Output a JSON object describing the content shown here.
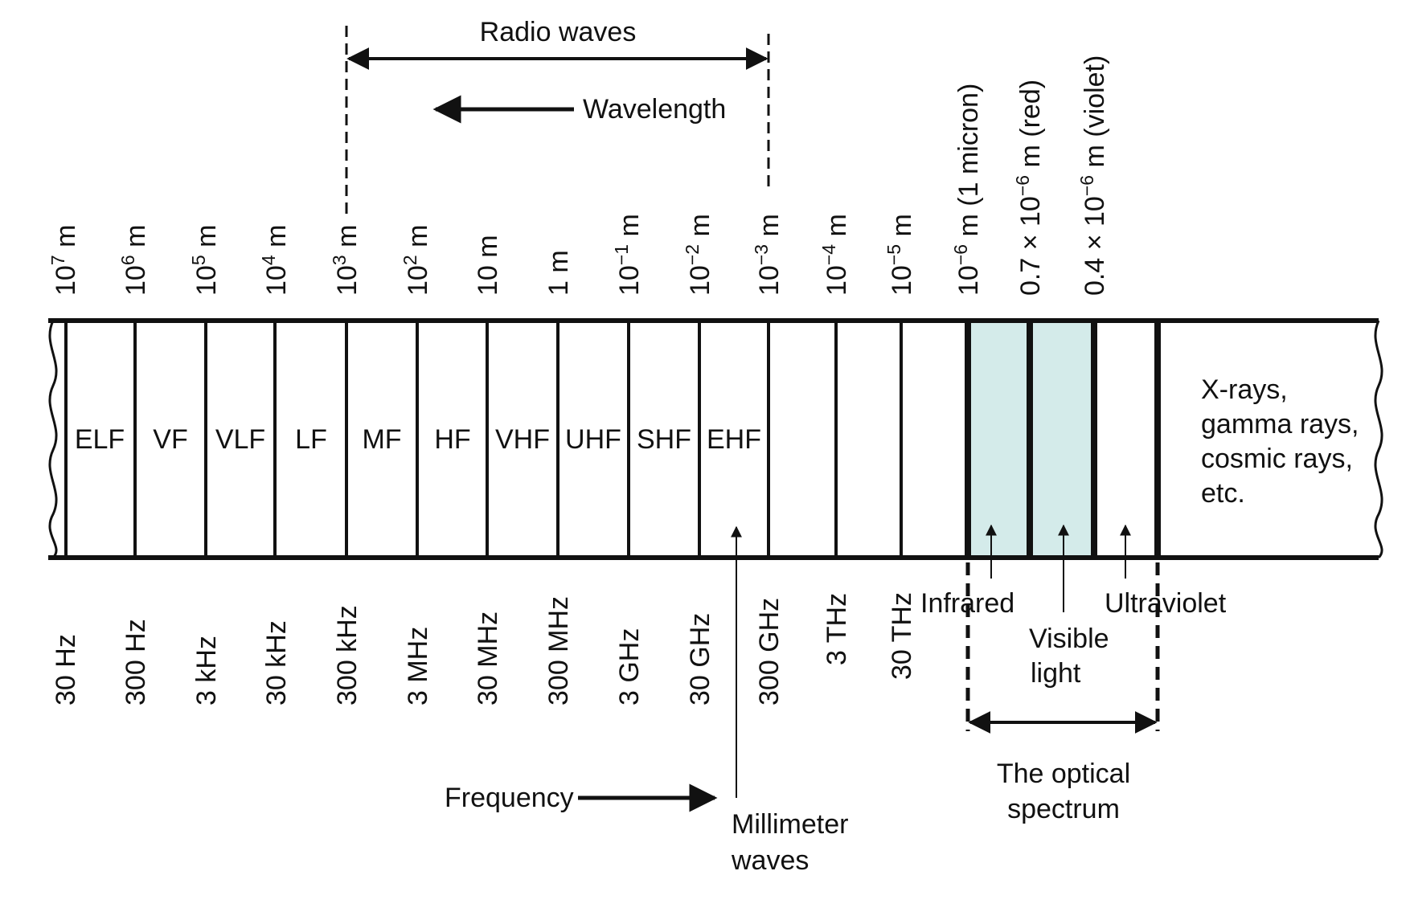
{
  "colors": {
    "line": "#111111",
    "optical_fill": "#d4ebea",
    "background": "#ffffff"
  },
  "annotations": {
    "radio_waves": "Radio waves",
    "wavelength": "Wavelength",
    "frequency": "Frequency",
    "millimeter_waves": [
      "Millimeter",
      "waves"
    ],
    "infrared": "Infrared",
    "visible_light": [
      "Visible",
      "light"
    ],
    "ultraviolet": "Ultraviolet",
    "optical_spectrum": [
      "The optical",
      "spectrum"
    ],
    "high_energy": [
      "X-rays,",
      "gamma rays,",
      "cosmic rays,",
      "etc."
    ]
  },
  "bands": [
    "ELF",
    "VF",
    "VLF",
    "LF",
    "MF",
    "HF",
    "VHF",
    "UHF",
    "SHF",
    "EHF"
  ],
  "wavelengths": [
    {
      "base": "10",
      "exp": "7",
      "unit": " m"
    },
    {
      "base": "10",
      "exp": "6",
      "unit": " m"
    },
    {
      "base": "10",
      "exp": "5",
      "unit": " m"
    },
    {
      "base": "10",
      "exp": "4",
      "unit": " m"
    },
    {
      "base": "10",
      "exp": "3",
      "unit": " m"
    },
    {
      "base": "10",
      "exp": "2",
      "unit": " m"
    },
    {
      "base": "10 m",
      "exp": "",
      "unit": ""
    },
    {
      "base": "1 m",
      "exp": "",
      "unit": ""
    },
    {
      "base": "10",
      "exp": "−1",
      "unit": " m"
    },
    {
      "base": "10",
      "exp": "−2",
      "unit": " m"
    },
    {
      "base": "10",
      "exp": "−3",
      "unit": " m"
    },
    {
      "base": "10",
      "exp": "−4",
      "unit": " m"
    },
    {
      "base": "10",
      "exp": "−5",
      "unit": " m"
    },
    {
      "base": "10",
      "exp": "−6",
      "unit": " m (1 micron)"
    },
    {
      "base": "0.7 × 10",
      "exp": "−6",
      "unit": " m (red)"
    },
    {
      "base": "0.4 × 10",
      "exp": "−6",
      "unit": " m (violet)"
    }
  ],
  "frequencies": [
    "30 Hz",
    "300 Hz",
    "3 kHz",
    "30 kHz",
    "300 kHz",
    "3 MHz",
    "30 MHz",
    "300 MHz",
    "3 GHz",
    "30 GHz",
    "300 GHz",
    "3 THz",
    "30 THz"
  ]
}
